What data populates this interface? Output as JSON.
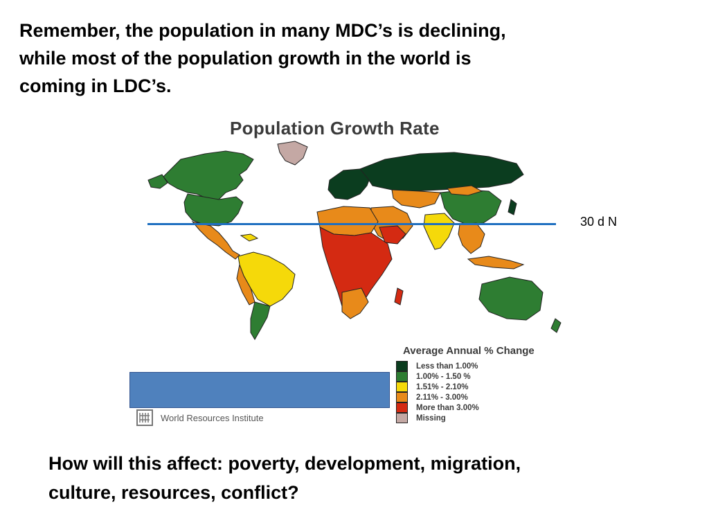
{
  "slide": {
    "heading_line1": "Remember, the population in many MDC’s is declining,",
    "heading_line2": "while most of the population growth in the world is",
    "heading_line3": "coming in LDC’s.",
    "question_line1": "How will this affect:  poverty, development, migration,",
    "question_line2": "culture,  resources, conflict?"
  },
  "map": {
    "title": "Population Growth Rate",
    "latitude_label": "30 d N",
    "latitude_line_color": "#1f6fc0",
    "source": "World Resources Institute",
    "source_icon": "wri-logo-icon",
    "legend": {
      "title": "Average Annual % Change",
      "items": [
        {
          "label": "Less than 1.00%",
          "color": "#0b3d1f"
        },
        {
          "label": "1.00% - 1.50 %",
          "color": "#2e7d32"
        },
        {
          "label": "1.51% - 2.10%",
          "color": "#f5d90a"
        },
        {
          "label": "2.11% - 3.00%",
          "color": "#e88a1a"
        },
        {
          "label": "More than 3.00%",
          "color": "#d42a12"
        },
        {
          "label": "Missing",
          "color": "#c4a8a4"
        }
      ]
    },
    "overlay_box_color": "#4f81bd"
  }
}
